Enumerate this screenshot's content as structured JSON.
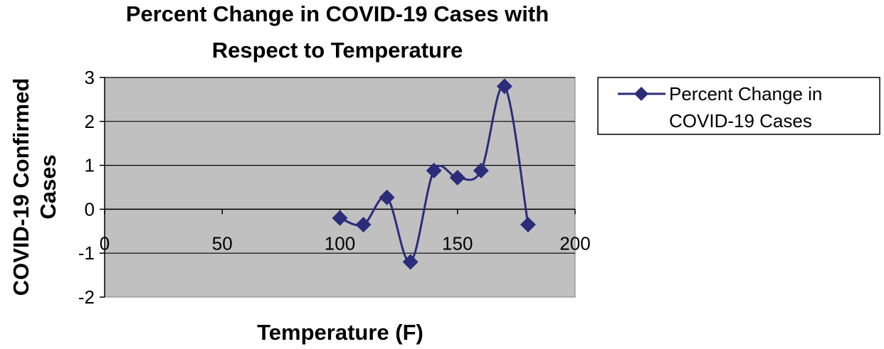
{
  "chart_data": {
    "type": "line",
    "title_lines": [
      "Percent Change in COVID-19 Cases with",
      "Respect to Temperature"
    ],
    "xlabel": "Temperature (F)",
    "ylabel_lines": [
      "COVID-19 Confirmed",
      "Cases"
    ],
    "xlim": [
      0,
      200
    ],
    "ylim": [
      -2,
      3
    ],
    "x_ticks": [
      0,
      50,
      100,
      150,
      200
    ],
    "y_ticks": [
      3,
      2,
      1,
      0,
      -1,
      -2
    ],
    "x_tick_labels": [
      "0",
      "50",
      "100",
      "150",
      "200"
    ],
    "y_tick_labels": [
      "3",
      "2",
      "1",
      "0",
      "-1",
      "-2"
    ],
    "grid": "horizontal",
    "legend_position": "right",
    "series": [
      {
        "name_lines": [
          "Percent Change in",
          "COVID-19 Cases"
        ],
        "color": "#2b2d7a",
        "marker": "diamond",
        "smooth": true,
        "x": [
          100,
          110,
          120,
          130,
          140,
          150,
          160,
          170,
          180
        ],
        "y": [
          -0.2,
          -0.35,
          0.27,
          -1.2,
          0.88,
          0.72,
          0.88,
          2.8,
          -0.35
        ]
      }
    ],
    "plot_background": "#c0c0c0"
  }
}
